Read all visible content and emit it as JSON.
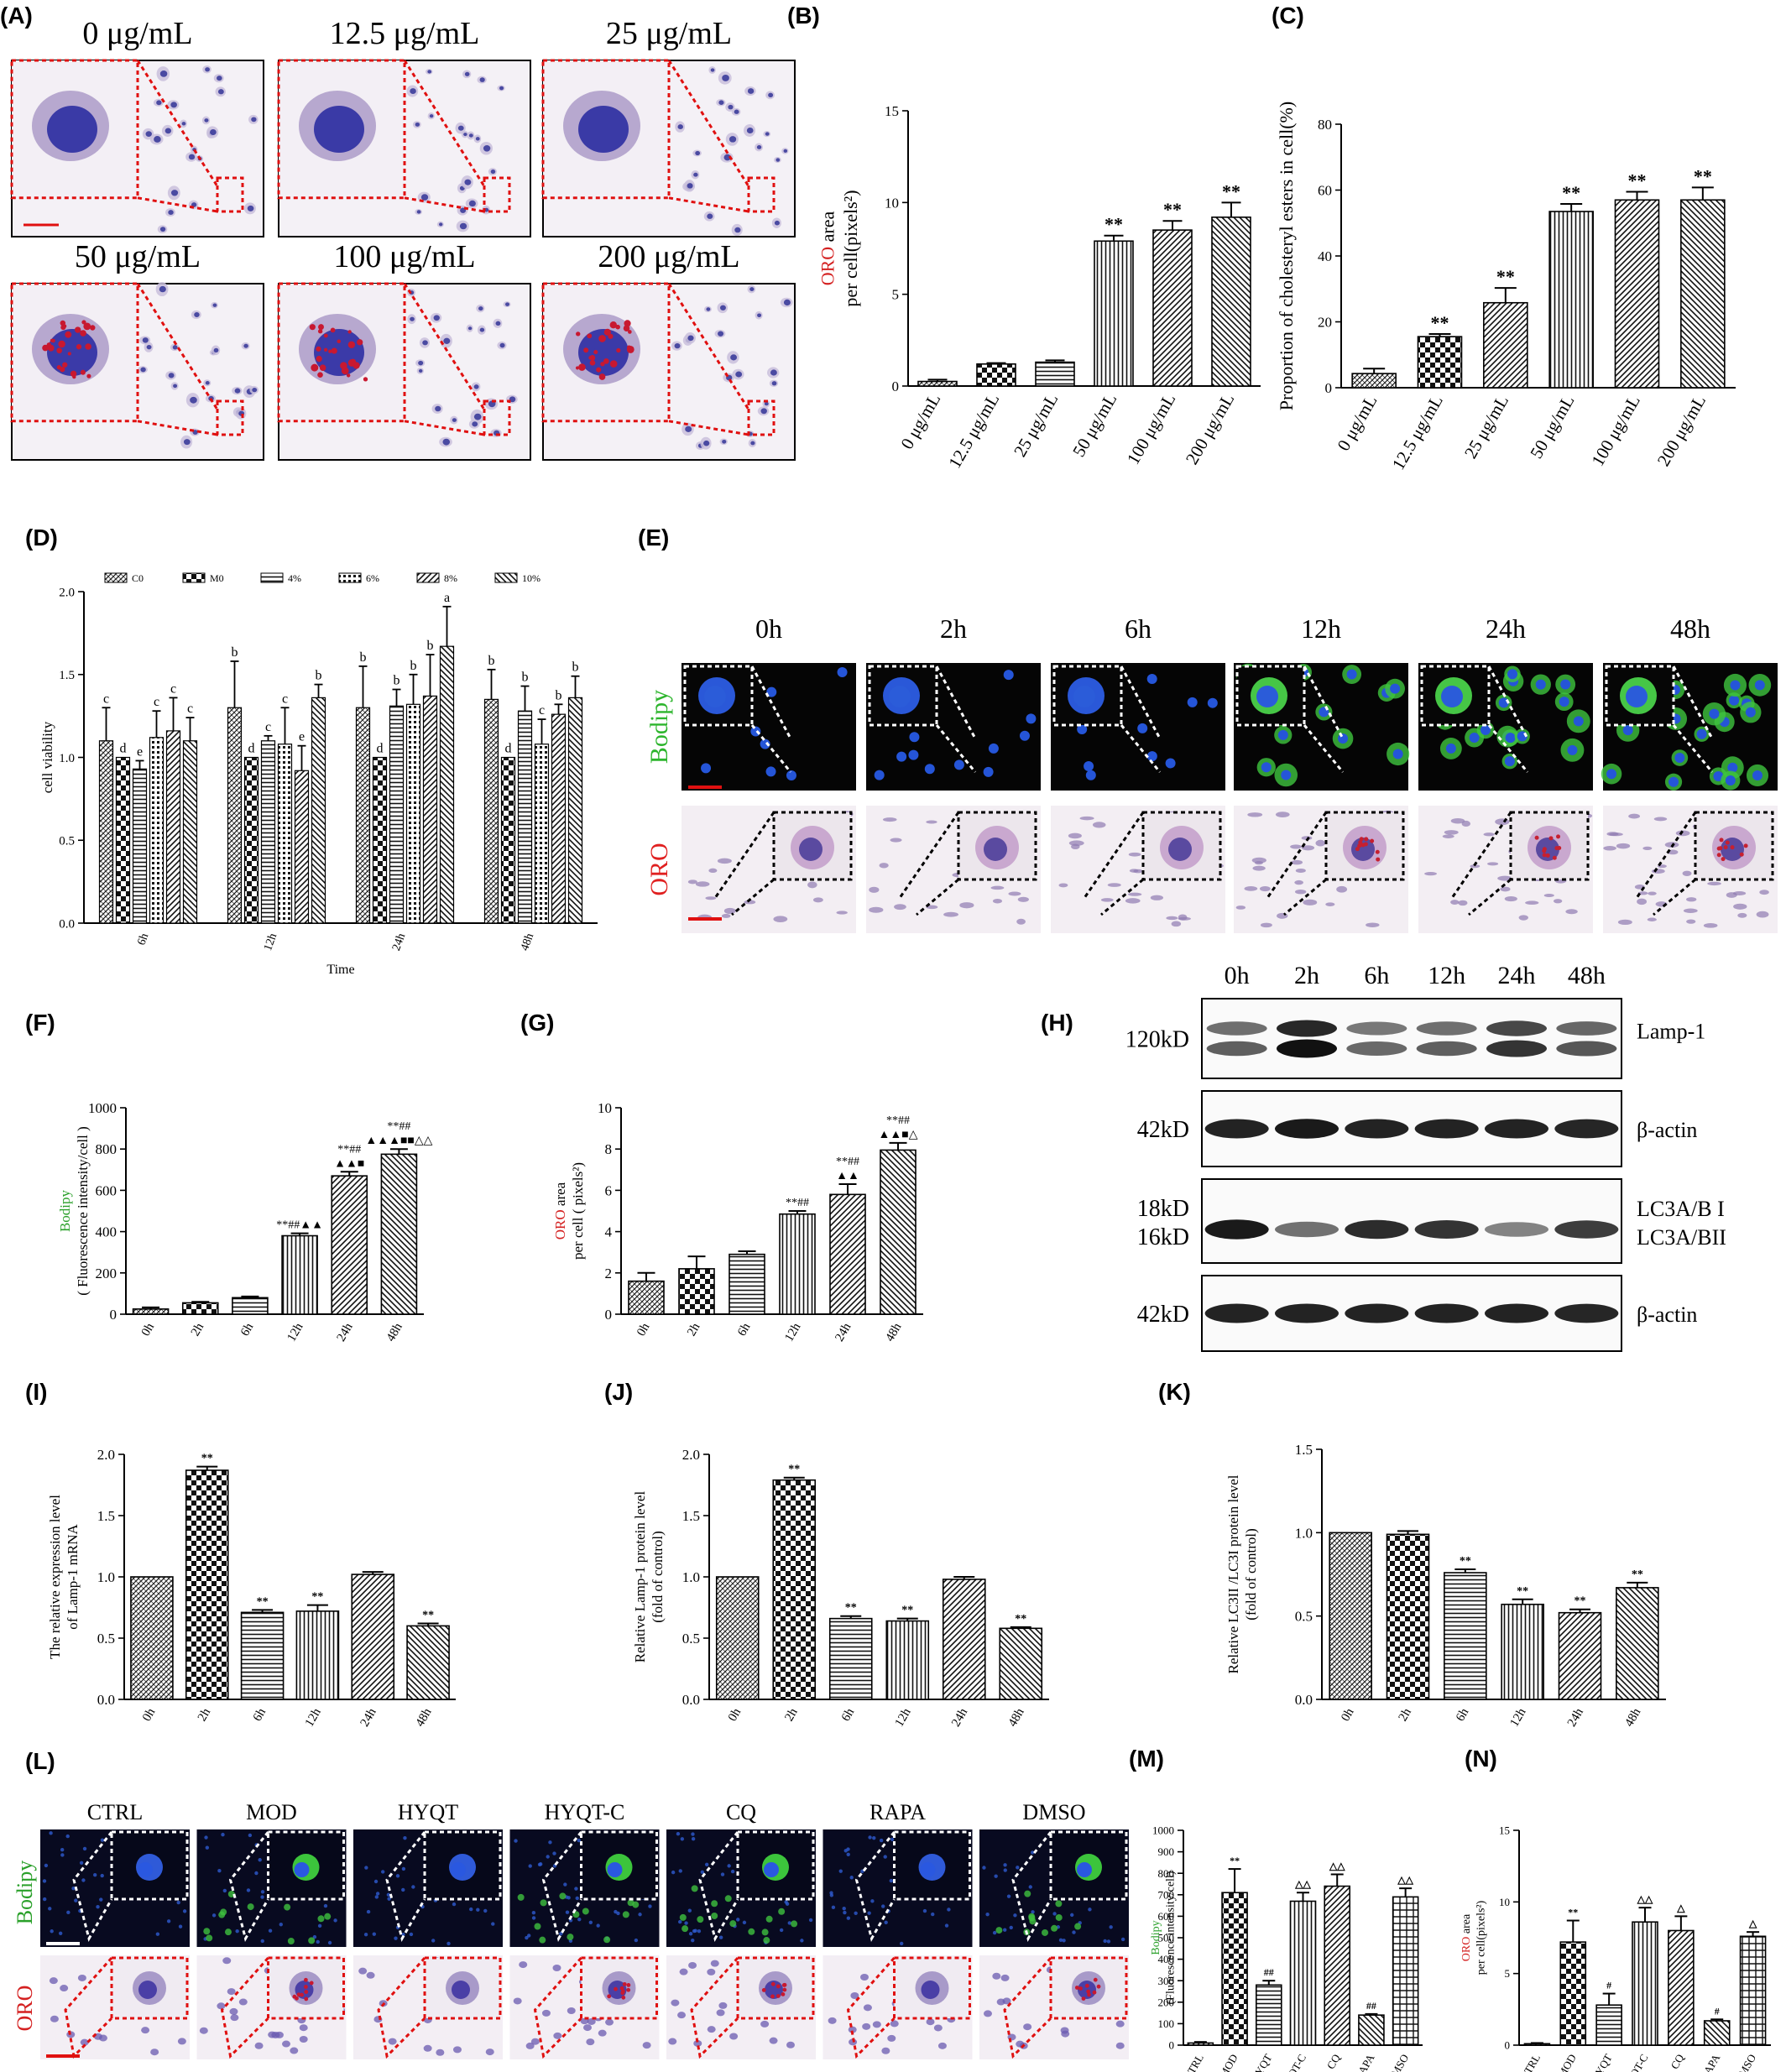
{
  "panels": {
    "A": {
      "label": "(A)",
      "images": [
        {
          "label": "0 μg/mL",
          "stain": "blue"
        },
        {
          "label": "12.5 μg/mL",
          "stain": "blue"
        },
        {
          "label": "25 μg/mL",
          "stain": "blue"
        },
        {
          "label": "50 μg/mL",
          "stain": "red"
        },
        {
          "label": "100 μg/mL",
          "stain": "red"
        },
        {
          "label": "200 μg/mL",
          "stain": "red"
        }
      ]
    },
    "E": {
      "label": "(E)",
      "times": [
        "0h",
        "2h",
        "6h",
        "12h",
        "24h",
        "48h"
      ],
      "row_labels": [
        "Bodipy",
        "ORO"
      ],
      "row_colors": {
        "Bodipy": "#2db52d",
        "ORO": "#e02020"
      }
    },
    "H": {
      "label": "(H)",
      "lanes": [
        "0h",
        "2h",
        "6h",
        "12h",
        "24h",
        "48h"
      ],
      "blots": [
        {
          "left": "120kD",
          "right": "Lamp-1",
          "intensity": [
            0.55,
            1.0,
            0.5,
            0.55,
            0.8,
            0.6
          ],
          "double": true
        },
        {
          "left": "42kD",
          "right": "β-actin",
          "intensity": [
            0.9,
            0.95,
            0.9,
            0.9,
            0.9,
            0.88
          ],
          "double": false
        },
        {
          "left": "18kD\n16kD",
          "right": "LC3A/B I\nLC3A/BII",
          "left_lines": [
            "18kD",
            "16kD"
          ],
          "right_lines": [
            "LC3A/B I",
            "LC3A/BII"
          ],
          "intensity": [
            0.95,
            0.45,
            0.85,
            0.8,
            0.35,
            0.75
          ],
          "double": false
        },
        {
          "left": "42kD",
          "right": "β-actin",
          "intensity": [
            0.9,
            0.9,
            0.9,
            0.9,
            0.9,
            0.88
          ],
          "double": false
        }
      ]
    },
    "L": {
      "label": "(L)",
      "groups": [
        "CTRL",
        "MOD",
        "HYQT",
        "HYQT-C",
        "CQ",
        "RAPA",
        "DMSO"
      ],
      "row_labels": [
        "Bodipy",
        "ORO"
      ]
    }
  },
  "chart_data": [
    {
      "id": "B",
      "panel_label": "(B)",
      "type": "bar",
      "categories": [
        "0 μg/mL",
        "12.5 μg/mL",
        "25 μg/mL",
        "50 μg/mL",
        "100 μg/mL",
        "200 μg/mL"
      ],
      "values": [
        0.25,
        1.2,
        1.3,
        7.9,
        8.5,
        9.2
      ],
      "errors": [
        0.1,
        0.05,
        0.1,
        0.3,
        0.5,
        0.8
      ],
      "annotations": [
        "",
        "",
        "",
        "**",
        "**",
        "**"
      ],
      "ylabel_colored": "ORO",
      "ylabel_rest": " area",
      "ylabel_line2": "per cell(pixels²)",
      "yticks": [
        0,
        5,
        10,
        15
      ],
      "ylim": [
        0,
        15
      ],
      "patterns": [
        "hatch",
        "check",
        "hline",
        "vline",
        "diag",
        "bdiag"
      ]
    },
    {
      "id": "C",
      "panel_label": "(C)",
      "type": "bar",
      "categories": [
        "0 μg/mL",
        "12.5 μg/mL",
        "25 μg/mL",
        "50 μg/mL",
        "100 μg/mL",
        "200 μg/mL"
      ],
      "values": [
        4.3,
        15.5,
        25.8,
        53.5,
        57,
        57
      ],
      "errors": [
        1.5,
        0.8,
        4.5,
        2.3,
        2.5,
        3.8
      ],
      "annotations": [
        "",
        "**",
        "**",
        "**",
        "**",
        "**"
      ],
      "ylabel": "Proportion of cholesteryl esters in cell(%)",
      "yticks": [
        0,
        20,
        40,
        60,
        80
      ],
      "ylim": [
        0,
        80
      ],
      "patterns": [
        "hatch",
        "check",
        "diag",
        "vline",
        "diag",
        "bdiag"
      ]
    },
    {
      "id": "D",
      "panel_label": "(D)",
      "type": "bar",
      "categories": [
        "6h",
        "12h",
        "24h",
        "48h"
      ],
      "series": [
        {
          "name": "C0",
          "values": [
            1.1,
            1.3,
            1.3,
            1.35
          ],
          "errors": [
            0.2,
            0.28,
            0.25,
            0.18
          ],
          "letters": [
            "c",
            "b",
            "b",
            "b"
          ]
        },
        {
          "name": "M0",
          "values": [
            1.0,
            1.0,
            1.0,
            1.0
          ],
          "errors": [
            0,
            0,
            0,
            0
          ],
          "letters": [
            "d",
            "d",
            "d",
            "d"
          ]
        },
        {
          "name": "4%",
          "values": [
            0.93,
            1.1,
            1.31,
            1.28
          ],
          "errors": [
            0.05,
            0.03,
            0.1,
            0.15
          ],
          "letters": [
            "e",
            "c",
            "b",
            "b"
          ]
        },
        {
          "name": "6%",
          "values": [
            1.12,
            1.08,
            1.32,
            1.08
          ],
          "errors": [
            0.16,
            0.22,
            0.18,
            0.15
          ],
          "letters": [
            "c",
            "c",
            "b",
            "c"
          ]
        },
        {
          "name": "8%",
          "values": [
            1.16,
            0.92,
            1.37,
            1.26
          ],
          "errors": [
            0.2,
            0.15,
            0.25,
            0.06
          ],
          "letters": [
            "c",
            "e",
            "b",
            "b"
          ]
        },
        {
          "name": "10%",
          "values": [
            1.1,
            1.36,
            1.67,
            1.36
          ],
          "errors": [
            0.14,
            0.08,
            0.24,
            0.13
          ],
          "letters": [
            "c",
            "b",
            "a",
            "b"
          ]
        }
      ],
      "ylabel": "cell viability",
      "xlabel": "Time",
      "yticks": [
        "0.0",
        "0.5",
        "1.0",
        "1.5",
        "2.0"
      ],
      "ylim": [
        0,
        2
      ],
      "patterns": [
        "hatch",
        "check",
        "hline",
        "dots",
        "diag",
        "bdiag"
      ]
    },
    {
      "id": "F",
      "panel_label": "(F)",
      "type": "bar",
      "categories": [
        "0h",
        "2h",
        "6h",
        "12h",
        "24h",
        "48h"
      ],
      "values": [
        25,
        55,
        80,
        380,
        670,
        775
      ],
      "errors": [
        8,
        5,
        6,
        12,
        20,
        25
      ],
      "annotations": [
        [],
        [],
        [],
        [
          "**##▲▲"
        ],
        [
          "**##",
          "▲▲■"
        ],
        [
          "**##",
          "▲▲▲■■△△"
        ]
      ],
      "ylabel_colored": "Bodipy",
      "ylabel_line2": "( Fluorescence intensity/cell )",
      "yticks": [
        0,
        200,
        400,
        600,
        800,
        1000
      ],
      "ylim": [
        0,
        1000
      ],
      "patterns": [
        "hatch",
        "check",
        "hline",
        "vline",
        "diag",
        "bdiag"
      ]
    },
    {
      "id": "G",
      "panel_label": "(G)",
      "type": "bar",
      "categories": [
        "0h",
        "2h",
        "6h",
        "12h",
        "24h",
        "48h"
      ],
      "values": [
        1.6,
        2.2,
        2.9,
        4.85,
        5.8,
        7.95
      ],
      "errors": [
        0.4,
        0.6,
        0.15,
        0.15,
        0.5,
        0.35
      ],
      "annotations": [
        [],
        [],
        [],
        [
          "**##"
        ],
        [
          "**##",
          "▲▲"
        ],
        [
          "**##",
          "▲▲■△"
        ]
      ],
      "ylabel_colored": "ORO",
      "ylabel_rest": " area",
      "ylabel_line2": "per cell ( pixels²)",
      "yticks": [
        0,
        2,
        4,
        6,
        8,
        10
      ],
      "ylim": [
        0,
        10
      ],
      "patterns": [
        "hatch",
        "check",
        "hline",
        "vline",
        "diag",
        "bdiag"
      ]
    },
    {
      "id": "I",
      "panel_label": "(I)",
      "type": "bar",
      "categories": [
        "0h",
        "2h",
        "6h",
        "12h",
        "24h",
        "48h"
      ],
      "values": [
        1.0,
        1.87,
        0.71,
        0.72,
        1.02,
        0.6
      ],
      "errors": [
        0,
        0.03,
        0.02,
        0.05,
        0.02,
        0.02
      ],
      "annotations": [
        "",
        "**",
        "**",
        "**",
        "",
        "**"
      ],
      "ylabel": "The relative expression level",
      "ylabel_line2": "of Lamp-1 mRNA",
      "yticks": [
        "0.0",
        "0.5",
        "1.0",
        "1.5",
        "2.0"
      ],
      "ylim": [
        0,
        2
      ],
      "patterns": [
        "hatch",
        "check",
        "hline",
        "vline",
        "diag",
        "bdiag"
      ]
    },
    {
      "id": "J",
      "panel_label": "(J)",
      "type": "bar",
      "categories": [
        "0h",
        "2h",
        "6h",
        "12h",
        "24h",
        "48h"
      ],
      "values": [
        1.0,
        1.79,
        0.66,
        0.64,
        0.98,
        0.58
      ],
      "errors": [
        0,
        0.02,
        0.02,
        0.02,
        0.02,
        0.01
      ],
      "annotations": [
        "",
        "**",
        "**",
        "**",
        "",
        "**"
      ],
      "ylabel": "Relative Lamp-1 protein level",
      "ylabel_line2": "(fold of control)",
      "yticks": [
        "0.0",
        "0.5",
        "1.0",
        "1.5",
        "2.0"
      ],
      "ylim": [
        0,
        2
      ],
      "patterns": [
        "hatch",
        "check",
        "hline",
        "vline",
        "diag",
        "bdiag"
      ]
    },
    {
      "id": "K",
      "panel_label": "(K)",
      "type": "bar",
      "categories": [
        "0h",
        "2h",
        "6h",
        "12h",
        "24h",
        "48h"
      ],
      "values": [
        1.0,
        0.99,
        0.76,
        0.57,
        0.52,
        0.67
      ],
      "errors": [
        0,
        0.02,
        0.02,
        0.03,
        0.02,
        0.03
      ],
      "annotations": [
        "",
        "",
        "**",
        "**",
        "**",
        "**"
      ],
      "ylabel": "Relative LC3II /LC3I  protein level",
      "ylabel_line2": "(fold of control)",
      "yticks": [
        "0.0",
        "0.5",
        "1.0",
        "1.5"
      ],
      "ylim": [
        0,
        1.5
      ],
      "patterns": [
        "hatch",
        "check",
        "hline",
        "vline",
        "diag",
        "bdiag"
      ]
    },
    {
      "id": "M",
      "panel_label": "(M)",
      "type": "bar",
      "categories": [
        "CTRL",
        "MOD",
        "HYQT",
        "HYQT-C",
        "CQ",
        "RAPA",
        "DMSO"
      ],
      "values": [
        10,
        710,
        280,
        670,
        740,
        140,
        690
      ],
      "errors": [
        5,
        110,
        20,
        40,
        55,
        5,
        40
      ],
      "annotations": [
        "",
        "**",
        "##",
        "△△",
        "△△",
        "##",
        "△△"
      ],
      "ylabel_colored": "Bodipy",
      "ylabel_line2": "(Fluorescence intensity/cell)",
      "yticks": [
        0,
        100,
        200,
        300,
        400,
        500,
        600,
        700,
        800,
        900,
        1000
      ],
      "ylim": [
        0,
        1000
      ],
      "patterns": [
        "hatch",
        "check",
        "hline",
        "vline",
        "diag",
        "bdiag",
        "grid"
      ]
    },
    {
      "id": "N",
      "panel_label": "(N)",
      "type": "bar",
      "categories": [
        "CTRL",
        "MOD",
        "HYQT",
        "HYQT-C",
        "CQ",
        "RAPA",
        "DMSO"
      ],
      "values": [
        0.1,
        7.2,
        2.8,
        8.6,
        8.0,
        1.7,
        7.6
      ],
      "errors": [
        0.05,
        1.5,
        0.8,
        1.0,
        1.0,
        0.1,
        0.3
      ],
      "annotations": [
        "",
        "**",
        "#",
        "△△",
        "△",
        "#",
        "△"
      ],
      "ylabel_colored": "ORO",
      "ylabel_rest": " area",
      "ylabel_line2": "per cell(pixels²)",
      "yticks": [
        0,
        5,
        10,
        15
      ],
      "ylim": [
        0,
        15
      ],
      "patterns": [
        "hatch",
        "check",
        "hline",
        "vline",
        "diag",
        "bdiag",
        "grid"
      ]
    }
  ]
}
